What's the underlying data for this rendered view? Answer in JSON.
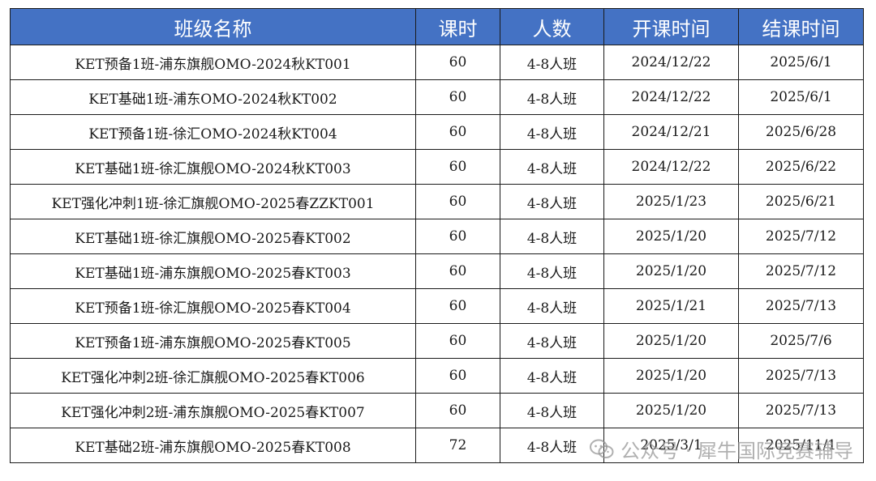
{
  "table": {
    "headers": [
      "班级名称",
      "课时",
      "人数",
      "开课时间",
      "结课时间"
    ],
    "rows": [
      [
        "KET预备1班-浦东旗舰OMO-2024秋KT001",
        "60",
        "4-8人班",
        "2024/12/22",
        "2025/6/1"
      ],
      [
        "KET基础1班-浦东OMO-2024秋KT002",
        "60",
        "4-8人班",
        "2024/12/22",
        "2025/6/1"
      ],
      [
        "KET预备1班-徐汇OMO-2024秋KT004",
        "60",
        "4-8人班",
        "2024/12/21",
        "2025/6/28"
      ],
      [
        "KET基础1班-徐汇旗舰OMO-2024秋KT003",
        "60",
        "4-8人班",
        "2024/12/22",
        "2025/6/22"
      ],
      [
        "KET强化冲刺1班-徐汇旗舰OMO-2025春ZZKT001",
        "60",
        "4-8人班",
        "2025/1/23",
        "2025/6/21"
      ],
      [
        "KET基础1班-徐汇旗舰OMO-2025春KT002",
        "60",
        "4-8人班",
        "2025/1/20",
        "2025/7/12"
      ],
      [
        "KET基础1班-浦东旗舰OMO-2025春KT003",
        "60",
        "4-8人班",
        "2025/1/20",
        "2025/7/12"
      ],
      [
        "KET预备1班-徐汇旗舰OMO-2025春KT004",
        "60",
        "4-8人班",
        "2025/1/21",
        "2025/7/13"
      ],
      [
        "KET预备1班-浦东旗舰OMO-2025春KT005",
        "60",
        "4-8人班",
        "2025/1/20",
        "2025/7/6"
      ],
      [
        "KET强化冲刺2班-徐汇旗舰OMO-2025春KT006",
        "60",
        "4-8人班",
        "2025/1/20",
        "2025/7/13"
      ],
      [
        "KET强化冲刺2班-浦东旗舰OMO-2025春KT007",
        "60",
        "4-8人班",
        "2025/1/20",
        "2025/7/13"
      ],
      [
        "KET基础2班-浦东旗舰OMO-2025春KT008",
        "72",
        "4-8人班",
        "2025/3/1",
        "2025/11/1"
      ]
    ]
  },
  "watermark": {
    "icon": "wechat-icon",
    "text": "公众号 · 犀牛国际竞赛辅导"
  },
  "colors": {
    "header_bg": "#4472c4",
    "header_text": "#ffffff",
    "border": "#1a1a1a"
  }
}
